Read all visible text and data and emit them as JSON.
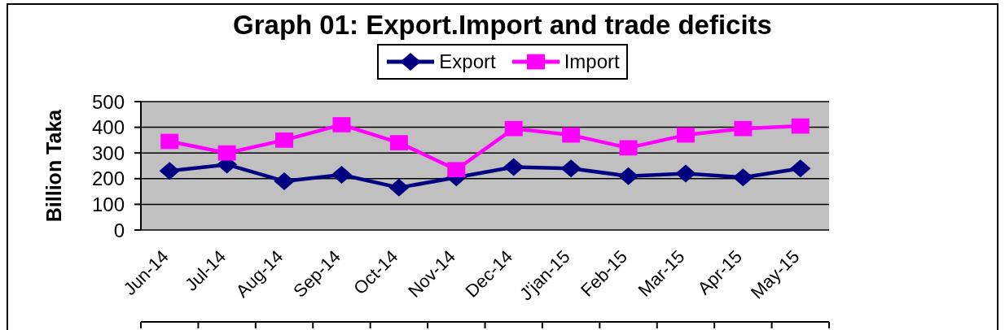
{
  "chart_data": {
    "type": "line",
    "title": "Graph 01: Export.Import and trade deficits",
    "ylabel": "Billion Taka",
    "categories": [
      "Jun-14",
      "Jul-14",
      "Aug-14",
      "Sep-14",
      "Oct-14",
      "Nov-14",
      "Dec-14",
      "J'jan-15",
      "Feb-15",
      "Mar-15",
      "Apr-15",
      "May-15"
    ],
    "series": [
      {
        "name": "Export",
        "color": "#000080",
        "marker": "diamond",
        "values": [
          230,
          255,
          190,
          215,
          165,
          205,
          245,
          240,
          210,
          220,
          205,
          240
        ]
      },
      {
        "name": "Import",
        "color": "#ff00ff",
        "marker": "square",
        "values": [
          345,
          300,
          350,
          410,
          340,
          235,
          395,
          370,
          320,
          370,
          395,
          405
        ]
      }
    ],
    "ylim": [
      0,
      500
    ],
    "yticks": [
      0,
      100,
      200,
      300,
      400,
      500
    ],
    "grid": "y",
    "legend": "top",
    "line_style": "solid"
  }
}
